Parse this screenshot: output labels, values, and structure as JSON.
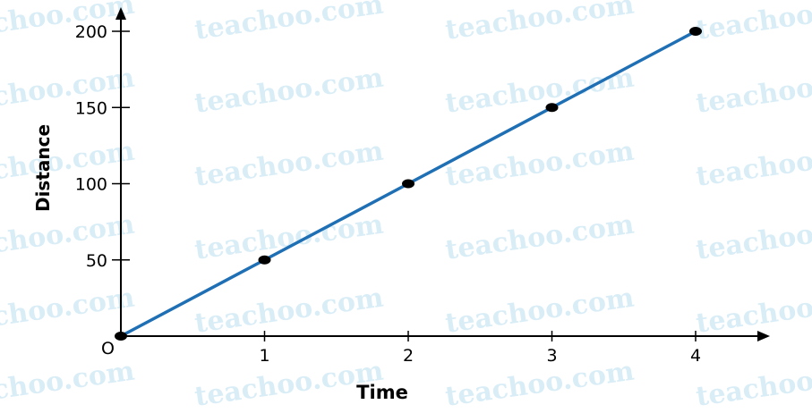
{
  "watermark": "teachoo.com",
  "chart_data": {
    "type": "line",
    "x": [
      0,
      1,
      2,
      3,
      4
    ],
    "values": [
      0,
      50,
      100,
      150,
      200
    ],
    "xlabel": "Time",
    "ylabel": "Distance",
    "origin_label": "O",
    "x_ticks": [
      "1",
      "2",
      "3",
      "4"
    ],
    "y_ticks": [
      "50",
      "100",
      "150",
      "200"
    ],
    "xlim": [
      0,
      4.5
    ],
    "ylim": [
      0,
      210
    ],
    "grid": false,
    "line_color": "#1f6fb5",
    "marker_color": "#000000"
  }
}
